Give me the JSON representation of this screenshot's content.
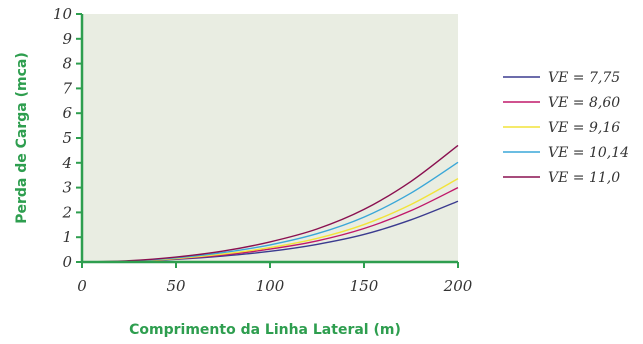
{
  "chart_data": {
    "type": "line",
    "xlabel": "Comprimento da Linha Lateral (m)",
    "ylabel": "Perda de Carga (mca)",
    "xlim": [
      0,
      200
    ],
    "ylim": [
      0,
      10
    ],
    "x_ticks": [
      "0",
      "50",
      "100",
      "150",
      "200"
    ],
    "y_ticks": [
      "0",
      "1",
      "2",
      "3",
      "4",
      "5",
      "6",
      "7",
      "8",
      "9",
      "10"
    ],
    "grid": false,
    "legend_position": "right",
    "plot_background": "#e9ede2",
    "axis_color": "#2e9e4f",
    "x": [
      0,
      25,
      50,
      75,
      100,
      125,
      150,
      175,
      200
    ],
    "series": [
      {
        "name": "VE = 7,75",
        "color": "#3b3b8f",
        "values": [
          0,
          0.03,
          0.11,
          0.24,
          0.43,
          0.71,
          1.11,
          1.7,
          2.45
        ]
      },
      {
        "name": "VE = 8,60",
        "color": "#c0186a",
        "values": [
          0,
          0.03,
          0.13,
          0.28,
          0.52,
          0.85,
          1.35,
          2.07,
          3.0
        ]
      },
      {
        "name": "VE = 9,16",
        "color": "#f2e33a",
        "values": [
          0,
          0.04,
          0.14,
          0.32,
          0.58,
          0.95,
          1.51,
          2.32,
          3.36
        ]
      },
      {
        "name": "VE = 10,14",
        "color": "#3aa7d8",
        "values": [
          0,
          0.04,
          0.17,
          0.38,
          0.69,
          1.14,
          1.81,
          2.78,
          4.02
        ]
      },
      {
        "name": "VE = 11,0",
        "color": "#8a1050",
        "values": [
          0,
          0.05,
          0.2,
          0.44,
          0.81,
          1.33,
          2.12,
          3.25,
          4.7
        ]
      }
    ]
  }
}
